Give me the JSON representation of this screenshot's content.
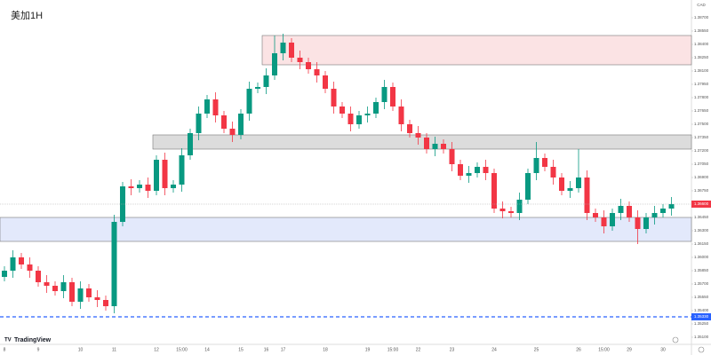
{
  "chart_data": {
    "type": "candlestick",
    "title": "美加1H",
    "currency": "CAD",
    "brand": "TradingView",
    "up_color": "#089981",
    "down_color": "#f23645",
    "categories": [
      "8",
      null,
      null,
      null,
      "9",
      null,
      null,
      null,
      null,
      "10",
      null,
      null,
      null,
      "11",
      null,
      null,
      null,
      null,
      "12",
      null,
      null,
      "15:00",
      null,
      null,
      "14",
      null,
      null,
      null,
      "15",
      null,
      null,
      "16",
      null,
      "17",
      null,
      null,
      null,
      null,
      "18",
      null,
      null,
      null,
      null,
      "19",
      null,
      null,
      "15:00",
      null,
      null,
      "22",
      null,
      null,
      null,
      "23",
      null,
      null,
      null,
      null,
      "24",
      null,
      null,
      null,
      null,
      "25",
      null,
      null,
      null,
      null,
      "26",
      null,
      null,
      "15:00",
      null,
      null,
      "29",
      null,
      null,
      null,
      "30",
      null
    ],
    "open": [
      1.3578,
      1.3585,
      1.36,
      1.3592,
      1.3585,
      1.3572,
      1.3568,
      1.3562,
      1.3572,
      1.355,
      1.3565,
      1.3555,
      1.3552,
      1.3545,
      1.364,
      1.368,
      1.3678,
      1.3682,
      1.3675,
      1.371,
      1.3678,
      1.3682,
      1.3715,
      1.374,
      1.3762,
      1.3778,
      1.376,
      1.3745,
      1.3738,
      1.3762,
      1.379,
      1.3792,
      1.3805,
      1.383,
      1.3842,
      1.3825,
      1.382,
      1.3812,
      1.3805,
      1.379,
      1.377,
      1.3762,
      1.375,
      1.376,
      1.3762,
      1.3775,
      1.3792,
      1.377,
      1.375,
      1.374,
      1.3735,
      1.3722,
      1.3728,
      1.3722,
      1.3705,
      1.3692,
      1.3695,
      1.3702,
      1.3695,
      1.3655,
      1.3652,
      1.365,
      1.3665,
      1.3695,
      1.3712,
      1.3702,
      1.369,
      1.3675,
      1.3678,
      1.369,
      1.365,
      1.3645,
      1.3635,
      1.365,
      1.3658,
      1.3645,
      1.3632,
      1.3645,
      1.365,
      1.3655
    ],
    "high": [
      1.359,
      1.3608,
      1.3605,
      1.36,
      1.359,
      1.358,
      1.3573,
      1.358,
      1.3577,
      1.3573,
      1.357,
      1.3563,
      1.3557,
      1.3648,
      1.3685,
      1.3688,
      1.3687,
      1.369,
      1.3715,
      1.3718,
      1.3687,
      1.3723,
      1.3745,
      1.377,
      1.3783,
      1.3786,
      1.3765,
      1.3753,
      1.3767,
      1.3798,
      1.3797,
      1.3813,
      1.385,
      1.3852,
      1.3847,
      1.3833,
      1.3825,
      1.382,
      1.381,
      1.3798,
      1.3775,
      1.377,
      1.3765,
      1.377,
      1.378,
      1.38,
      1.3797,
      1.3778,
      1.3755,
      1.3748,
      1.374,
      1.3736,
      1.3733,
      1.373,
      1.371,
      1.3703,
      1.3707,
      1.371,
      1.37,
      1.3663,
      1.3657,
      1.3673,
      1.37,
      1.373,
      1.3717,
      1.371,
      1.3695,
      1.3686,
      1.3722,
      1.3698,
      1.3655,
      1.3653,
      1.3655,
      1.3666,
      1.3663,
      1.3653,
      1.365,
      1.3658,
      1.366,
      1.3668
    ],
    "low": [
      1.3573,
      1.3577,
      1.3587,
      1.3577,
      1.3567,
      1.356,
      1.3557,
      1.3554,
      1.3545,
      1.3542,
      1.355,
      1.3544,
      1.354,
      1.3537,
      1.3635,
      1.367,
      1.3673,
      1.3667,
      1.367,
      1.367,
      1.3673,
      1.3674,
      1.371,
      1.3732,
      1.3757,
      1.3752,
      1.374,
      1.373,
      1.3733,
      1.3754,
      1.3785,
      1.3784,
      1.38,
      1.3822,
      1.382,
      1.3812,
      1.3807,
      1.3797,
      1.3785,
      1.3762,
      1.3757,
      1.3742,
      1.3745,
      1.3752,
      1.3757,
      1.3767,
      1.3765,
      1.3742,
      1.3735,
      1.3727,
      1.3717,
      1.3714,
      1.3717,
      1.3697,
      1.3687,
      1.3684,
      1.369,
      1.3687,
      1.365,
      1.3644,
      1.3645,
      1.3642,
      1.366,
      1.3687,
      1.3697,
      1.3682,
      1.367,
      1.3667,
      1.3673,
      1.3642,
      1.364,
      1.3627,
      1.363,
      1.3642,
      1.364,
      1.3615,
      1.3627,
      1.3637,
      1.3645,
      1.3647
    ],
    "close": [
      1.3585,
      1.36,
      1.3592,
      1.3585,
      1.3572,
      1.3568,
      1.3562,
      1.3572,
      1.355,
      1.3565,
      1.3555,
      1.3552,
      1.3545,
      1.364,
      1.368,
      1.3678,
      1.3682,
      1.3675,
      1.371,
      1.3678,
      1.3682,
      1.3715,
      1.374,
      1.3762,
      1.3778,
      1.376,
      1.3745,
      1.3738,
      1.3762,
      1.379,
      1.3792,
      1.3805,
      1.383,
      1.3842,
      1.3825,
      1.382,
      1.3812,
      1.3805,
      1.379,
      1.377,
      1.3762,
      1.375,
      1.376,
      1.3762,
      1.3775,
      1.3792,
      1.377,
      1.375,
      1.374,
      1.3735,
      1.3722,
      1.3728,
      1.3722,
      1.3705,
      1.3692,
      1.3695,
      1.3702,
      1.3695,
      1.3655,
      1.3652,
      1.365,
      1.3665,
      1.3695,
      1.3712,
      1.3702,
      1.369,
      1.3675,
      1.3678,
      1.369,
      1.365,
      1.3645,
      1.3635,
      1.365,
      1.3658,
      1.3645,
      1.3632,
      1.3645,
      1.365,
      1.3655,
      1.366
    ],
    "zones": [
      {
        "top": 1.385,
        "bottom": 1.3817,
        "color": "#fbe3e4"
      },
      {
        "top": 1.3738,
        "bottom": 1.3722,
        "color": "#dcdcdc"
      },
      {
        "top": 1.3645,
        "bottom": 1.3618,
        "color": "#e3e9fb"
      }
    ],
    "last_price": {
      "value": 1.366,
      "label": "1.36600"
    },
    "alert_line": {
      "value": 1.3533,
      "label": "1.35330"
    },
    "ylim": [
      1.3505,
      1.389
    ],
    "yticks": [
      {
        "value": 1.351,
        "label": "1.35100"
      },
      {
        "value": 1.3525,
        "label": "1.35250"
      },
      {
        "value": 1.354,
        "label": "1.35400"
      },
      {
        "value": 1.3555,
        "label": "1.35550"
      },
      {
        "value": 1.357,
        "label": "1.35700"
      },
      {
        "value": 1.3585,
        "label": "1.35850"
      },
      {
        "value": 1.36,
        "label": "1.36000"
      },
      {
        "value": 1.3615,
        "label": "1.36150"
      },
      {
        "value": 1.363,
        "label": "1.36300"
      },
      {
        "value": 1.3645,
        "label": "1.36450"
      },
      {
        "value": 1.366,
        "label": "1.36600"
      },
      {
        "value": 1.3675,
        "label": "1.36750"
      },
      {
        "value": 1.369,
        "label": "1.36900"
      },
      {
        "value": 1.3705,
        "label": "1.37050"
      },
      {
        "value": 1.372,
        "label": "1.37200"
      },
      {
        "value": 1.3735,
        "label": "1.37350"
      },
      {
        "value": 1.375,
        "label": "1.37500"
      },
      {
        "value": 1.3765,
        "label": "1.37650"
      },
      {
        "value": 1.378,
        "label": "1.37800"
      },
      {
        "value": 1.3795,
        "label": "1.37950"
      },
      {
        "value": 1.381,
        "label": "1.38100"
      },
      {
        "value": 1.3825,
        "label": "1.38250"
      },
      {
        "value": 1.384,
        "label": "1.38400"
      },
      {
        "value": 1.3855,
        "label": "1.38550"
      },
      {
        "value": 1.387,
        "label": "1.38700"
      }
    ]
  }
}
